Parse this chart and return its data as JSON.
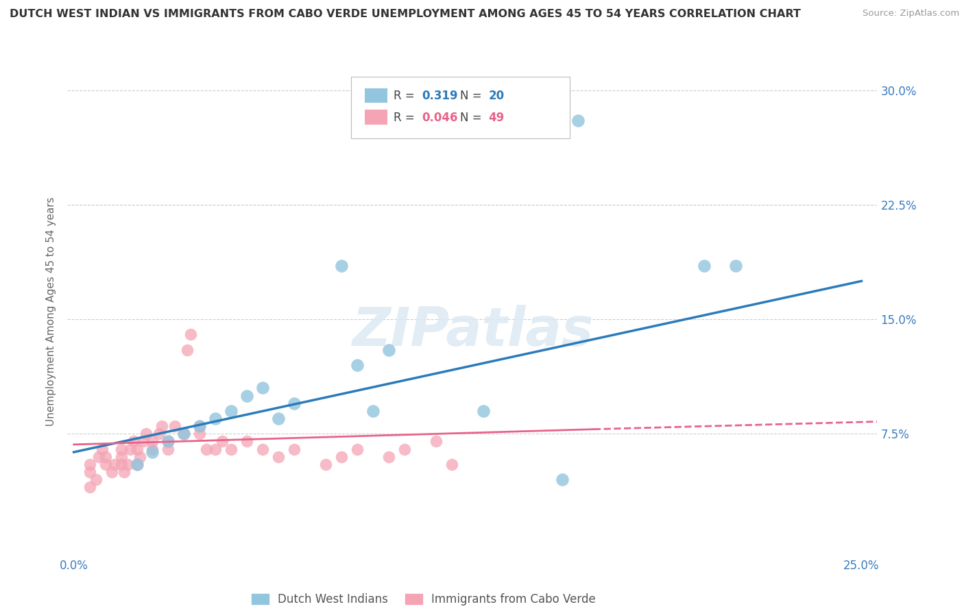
{
  "title": "DUTCH WEST INDIAN VS IMMIGRANTS FROM CABO VERDE UNEMPLOYMENT AMONG AGES 45 TO 54 YEARS CORRELATION CHART",
  "source": "Source: ZipAtlas.com",
  "ylabel": "Unemployment Among Ages 45 to 54 years",
  "xlim": [
    -0.002,
    0.255
  ],
  "ylim": [
    -0.005,
    0.315
  ],
  "ytick_positions": [
    0.0,
    0.075,
    0.15,
    0.225,
    0.3
  ],
  "ytick_labels": [
    "",
    "7.5%",
    "15.0%",
    "22.5%",
    "30.0%"
  ],
  "xtick_positions": [
    0.0,
    0.05,
    0.1,
    0.15,
    0.2,
    0.25
  ],
  "xtick_labels": [
    "0.0%",
    "",
    "",
    "",
    "",
    "25.0%"
  ],
  "watermark": "ZIPatlas",
  "legend_blue_r_val": "0.319",
  "legend_blue_n_val": "20",
  "legend_pink_r_val": "0.046",
  "legend_pink_n_val": "49",
  "blue_color": "#92c5de",
  "pink_color": "#f4a4b4",
  "blue_line_color": "#2b7bba",
  "pink_line_color": "#e8638a",
  "blue_label": "Dutch West Indians",
  "pink_label": "Immigrants from Cabo Verde",
  "blue_scatter_x": [
    0.02,
    0.025,
    0.03,
    0.035,
    0.04,
    0.045,
    0.05,
    0.055,
    0.06,
    0.065,
    0.07,
    0.085,
    0.09,
    0.095,
    0.1,
    0.13,
    0.155,
    0.16,
    0.2,
    0.21
  ],
  "blue_scatter_y": [
    0.055,
    0.063,
    0.07,
    0.075,
    0.08,
    0.085,
    0.09,
    0.1,
    0.105,
    0.085,
    0.095,
    0.185,
    0.12,
    0.09,
    0.13,
    0.09,
    0.045,
    0.28,
    0.185,
    0.185
  ],
  "pink_scatter_x": [
    0.005,
    0.005,
    0.005,
    0.007,
    0.008,
    0.009,
    0.01,
    0.01,
    0.012,
    0.013,
    0.015,
    0.015,
    0.015,
    0.016,
    0.017,
    0.018,
    0.019,
    0.02,
    0.02,
    0.021,
    0.022,
    0.023,
    0.025,
    0.025,
    0.027,
    0.028,
    0.03,
    0.03,
    0.032,
    0.035,
    0.036,
    0.037,
    0.04,
    0.04,
    0.042,
    0.045,
    0.047,
    0.05,
    0.055,
    0.06,
    0.065,
    0.07,
    0.08,
    0.085,
    0.09,
    0.1,
    0.105,
    0.115,
    0.12
  ],
  "pink_scatter_y": [
    0.05,
    0.055,
    0.04,
    0.045,
    0.06,
    0.065,
    0.055,
    0.06,
    0.05,
    0.055,
    0.055,
    0.06,
    0.065,
    0.05,
    0.055,
    0.065,
    0.07,
    0.055,
    0.065,
    0.06,
    0.07,
    0.075,
    0.065,
    0.07,
    0.075,
    0.08,
    0.065,
    0.07,
    0.08,
    0.075,
    0.13,
    0.14,
    0.075,
    0.08,
    0.065,
    0.065,
    0.07,
    0.065,
    0.07,
    0.065,
    0.06,
    0.065,
    0.055,
    0.06,
    0.065,
    0.06,
    0.065,
    0.07,
    0.055
  ],
  "blue_trend_x0": 0.0,
  "blue_trend_y0": 0.063,
  "blue_trend_x1": 0.25,
  "blue_trend_y1": 0.175,
  "pink_trend_solid_x0": 0.0,
  "pink_trend_solid_y0": 0.068,
  "pink_trend_solid_x1": 0.165,
  "pink_trend_solid_y1": 0.078,
  "pink_trend_dash_x0": 0.165,
  "pink_trend_dash_y0": 0.078,
  "pink_trend_dash_x1": 0.255,
  "pink_trend_dash_y1": 0.083,
  "grid_color": "#cccccc",
  "title_color": "#333333",
  "axis_label_color": "#3a7bbf",
  "background_color": "#ffffff"
}
